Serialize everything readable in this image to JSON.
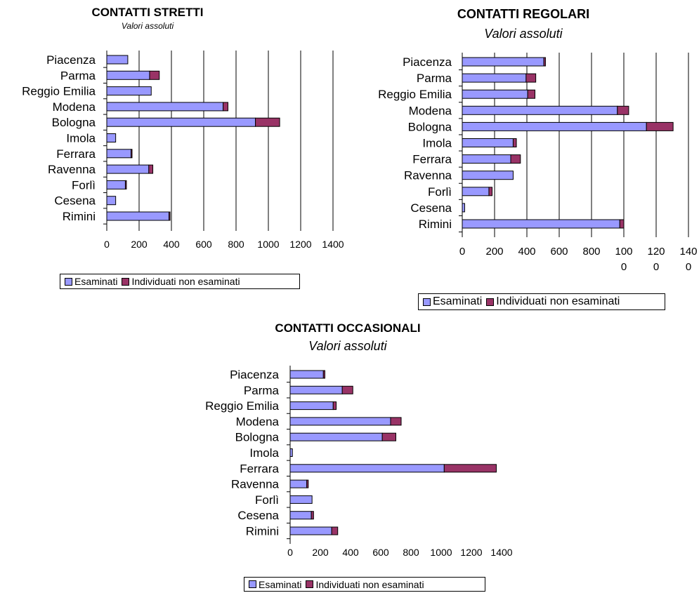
{
  "chart_data": [
    {
      "type": "bar",
      "orientation": "horizontal",
      "stacked": true,
      "title": "CONTATTI STRETTI",
      "subtitle": "Valori assoluti",
      "categories": [
        "Piacenza",
        "Parma",
        "Reggio Emilia",
        "Modena",
        "Bologna",
        "Imola",
        "Ferrara",
        "Ravenna",
        "Forlì",
        "Cesena",
        "Rimini"
      ],
      "series": [
        {
          "name": "Esaminati",
          "values": [
            130,
            265,
            275,
            720,
            920,
            55,
            150,
            260,
            115,
            55,
            385
          ]
        },
        {
          "name": "Individuati non esaminati",
          "values": [
            0,
            60,
            0,
            30,
            150,
            0,
            5,
            25,
            5,
            0,
            5
          ]
        }
      ],
      "xlim": [
        0,
        1400
      ],
      "xticks": [
        "0",
        "200",
        "400",
        "600",
        "800",
        "1000",
        "1200",
        "1400"
      ],
      "grid": "vertical",
      "legend_placement": "bottom"
    },
    {
      "type": "bar",
      "orientation": "horizontal",
      "stacked": true,
      "title": "CONTATTI REGOLARI",
      "subtitle": "Valori assoluti",
      "categories": [
        "Piacenza",
        "Parma",
        "Reggio Emilia",
        "Modena",
        "Bologna",
        "Imola",
        "Ferrara",
        "Ravenna",
        "Forlì",
        "Cesena",
        "Rimini"
      ],
      "series": [
        {
          "name": "Esaminati",
          "values": [
            505,
            395,
            405,
            960,
            1140,
            315,
            300,
            315,
            165,
            15,
            975
          ]
        },
        {
          "name": "Individuati non esaminati",
          "values": [
            10,
            60,
            45,
            70,
            165,
            20,
            60,
            0,
            20,
            0,
            25
          ]
        }
      ],
      "xlim": [
        0,
        1400
      ],
      "xticks": [
        "0",
        "200",
        "400",
        "600",
        "800",
        "100\n0",
        "120\n0",
        "140\n0"
      ],
      "grid": "vertical",
      "legend_placement": "bottom"
    },
    {
      "type": "bar",
      "orientation": "horizontal",
      "stacked": true,
      "title": "CONTATTI OCCASIONALI",
      "subtitle": "Valori assoluti",
      "categories": [
        "Piacenza",
        "Parma",
        "Reggio Emilia",
        "Modena",
        "Bologna",
        "Imola",
        "Ferrara",
        "Ravenna",
        "Forlì",
        "Cesena",
        "Rimini"
      ],
      "series": [
        {
          "name": "Esaminati",
          "values": [
            220,
            345,
            285,
            665,
            610,
            15,
            1020,
            110,
            145,
            140,
            275
          ]
        },
        {
          "name": "Individuati non esaminati",
          "values": [
            10,
            70,
            20,
            70,
            90,
            0,
            345,
            10,
            0,
            15,
            40
          ]
        }
      ],
      "xlim": [
        0,
        1400
      ],
      "xticks": [
        "0",
        "200",
        "400",
        "600",
        "800",
        "1000",
        "1200",
        "1400"
      ],
      "grid": "none",
      "legend_placement": "bottom"
    }
  ],
  "colors": {
    "esaminati": "#9999ff",
    "non_esaminati": "#993366",
    "axis": "#000000",
    "grid": "#000000"
  }
}
